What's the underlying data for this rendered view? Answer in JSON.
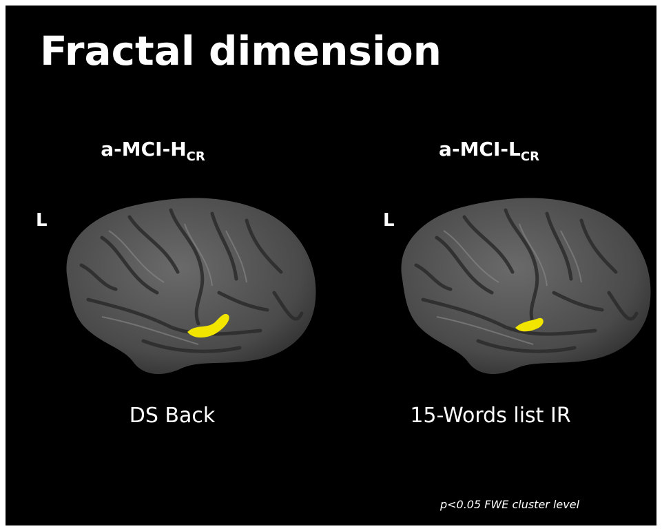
{
  "title": "Fractal dimension",
  "panels": [
    {
      "group": "a-MCI-H",
      "group_subscript": "CR",
      "side": "L",
      "caption": "DS Back"
    },
    {
      "group": "a-MCI-L",
      "group_subscript": "CR",
      "side": "L",
      "caption": "15-Words list IR"
    }
  ],
  "footnote": "p<0.05 FWE cluster level"
}
